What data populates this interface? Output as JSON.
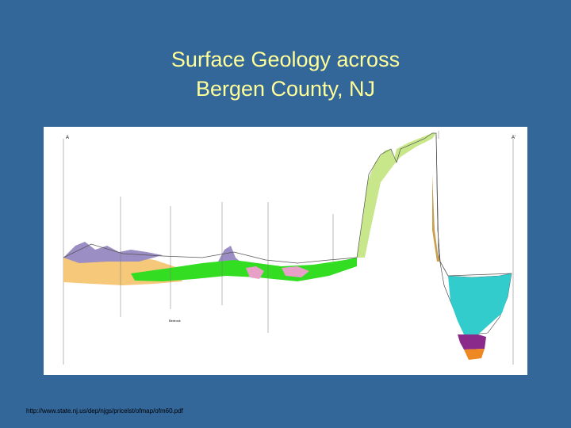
{
  "slide": {
    "title_lines": [
      "Surface Geology across",
      "Bergen County, NJ"
    ],
    "figure_labels": {
      "start": "A",
      "end": "A'",
      "bedrock": "Bedrock"
    },
    "source_url": "http://www.state.nj.us/dep/njgs/pricelst/ofmap/ofm60.pdf"
  }
}
